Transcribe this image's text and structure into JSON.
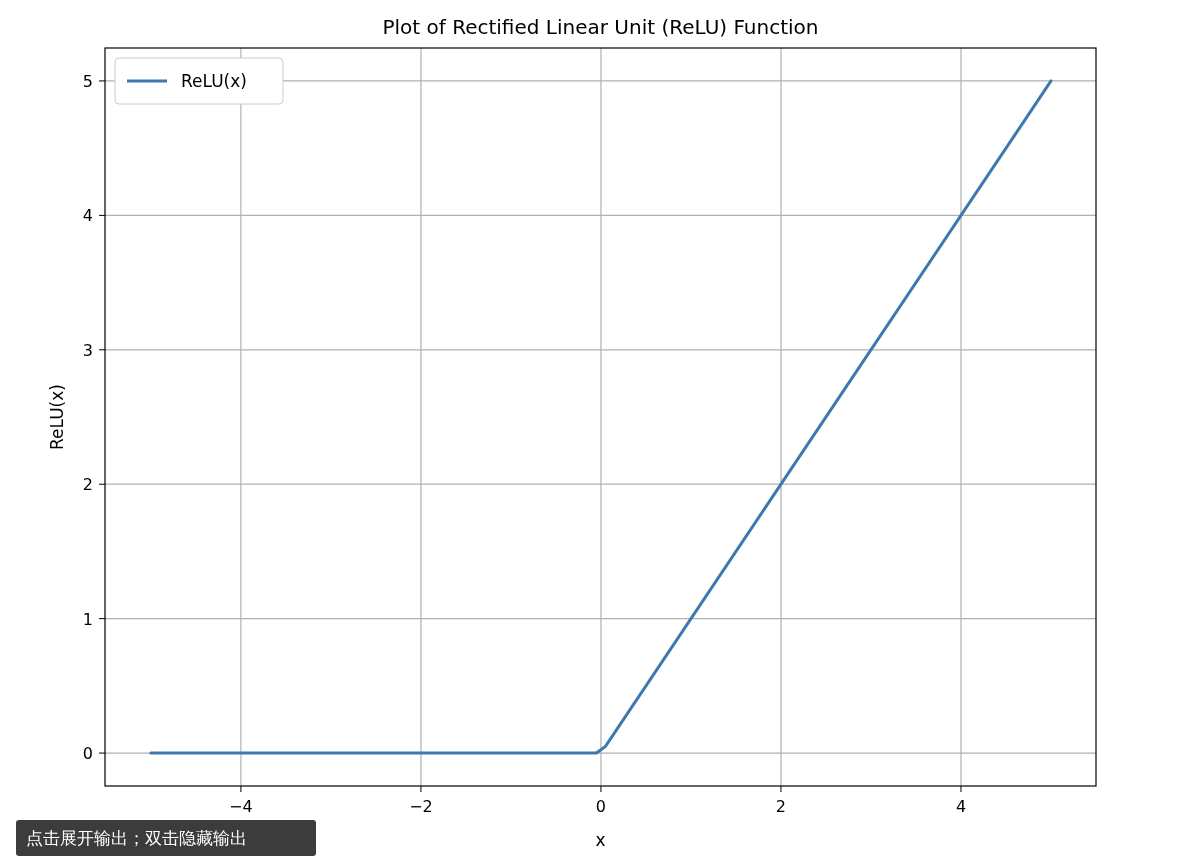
{
  "chart_data": {
    "type": "line",
    "title": "Plot of Rectified Linear Unit (ReLU) Function",
    "xlabel": "x",
    "ylabel": "ReLU(x)",
    "annotations": [
      "点击展开输出；双击隐藏输出"
    ],
    "series": [
      {
        "name": "ReLU(x)",
        "color": "#3d78b0",
        "x": [
          -5,
          -0.05,
          0.05,
          5
        ],
        "values": [
          0,
          0,
          0.05,
          5
        ]
      }
    ],
    "xlim": [
      -5.51,
      5.5
    ],
    "xticks": [
      {
        "value": -4,
        "label": "−4"
      },
      {
        "value": -2,
        "label": "−2"
      },
      0,
      2,
      4
    ],
    "ylim": [
      -0.245,
      5.245
    ],
    "yticks": [
      0,
      1,
      2,
      3,
      4,
      5
    ],
    "grid": true,
    "legend": "top left",
    "line_style": "solid",
    "marker": "none"
  }
}
